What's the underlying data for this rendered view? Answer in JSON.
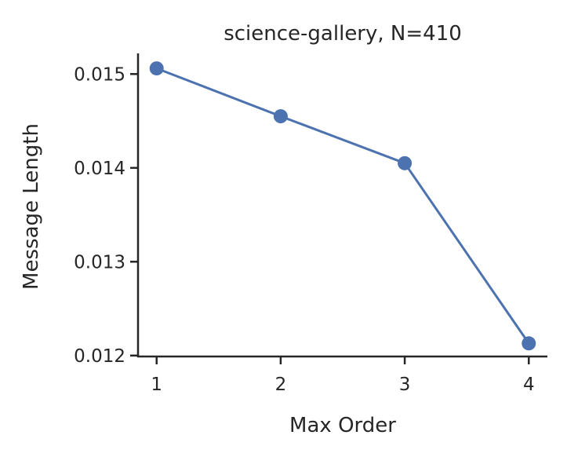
{
  "chart_data": {
    "type": "line",
    "title": "science-gallery, N=410",
    "xlabel": "Max Order",
    "ylabel": "Message Length",
    "x": [
      1,
      2,
      3,
      4
    ],
    "x_tick_labels": [
      "1",
      "2",
      "3",
      "4"
    ],
    "y_ticks": [
      0.012,
      0.013,
      0.014,
      0.015
    ],
    "y_tick_labels": [
      "0.012",
      "0.013",
      "0.014",
      "0.015"
    ],
    "series": [
      {
        "values": [
          0.01506,
          0.01455,
          0.01405,
          0.01213
        ]
      }
    ],
    "xlim": [
      0.85,
      4.15
    ],
    "ylim": [
      0.01199,
      0.01522
    ],
    "grid": false,
    "colors": {
      "series": "#4c72b0",
      "axes": "#262626"
    }
  }
}
